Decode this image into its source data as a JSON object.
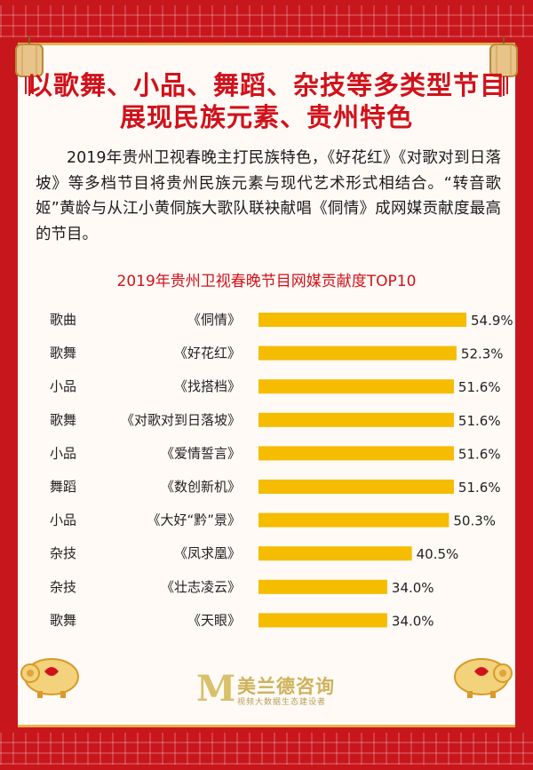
{
  "title": {
    "line1": "以歌舞、小品、舞蹈、杂技等多类型节目",
    "line2": "展现民族元素、贵州特色"
  },
  "intro": "2019年贵州卫视春晚主打民族特色，《好花红》《对歌对到日落坡》等多档节目将贵州民族元素与现代艺术形式相结合。“转音歌姬”黄龄与从江小黄侗族大歌队联袂献唱《侗情》成网媒贡献度最高的节目。",
  "chart_data": {
    "type": "bar",
    "orientation": "horizontal",
    "title": "2019年贵州卫视春晚节目网媒贡献度TOP10",
    "categories": [
      "歌曲",
      "歌舞",
      "小品",
      "歌舞",
      "小品",
      "舞蹈",
      "小品",
      "杂技",
      "杂技",
      "歌舞"
    ],
    "programs": [
      "《侗情》",
      "《好花红》",
      "《找搭档》",
      "《对歌对到日落坡》",
      "《爱情誓言》",
      "《数创新机》",
      "《大好“黔”景》",
      "《凤求凰》",
      "《壮志凌云》",
      "《天眼》"
    ],
    "values": [
      54.9,
      52.3,
      51.6,
      51.6,
      51.6,
      51.6,
      50.3,
      40.5,
      34.0,
      34.0
    ],
    "value_labels": [
      "54.9%",
      "52.3%",
      "51.6%",
      "51.6%",
      "51.6%",
      "51.6%",
      "50.3%",
      "40.5%",
      "34.0%",
      "34.0%"
    ],
    "bar_color": "#f5bc00",
    "xlim": [
      0,
      54.9
    ]
  },
  "logo": {
    "mark": "M",
    "name": "美兰德咨询",
    "sub": "视频大数据生态建设者"
  },
  "colors": {
    "frame": "#c8161d",
    "title": "#d0121b",
    "gold": "#e7b24a"
  }
}
